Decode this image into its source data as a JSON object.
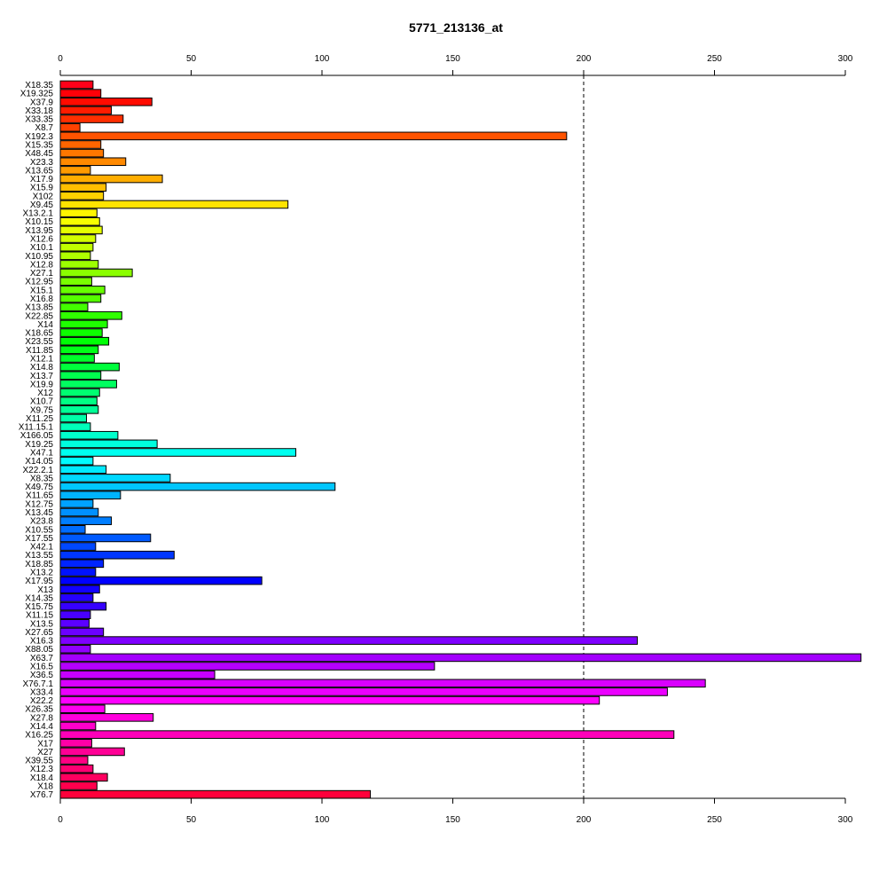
{
  "chart_data": {
    "type": "bar",
    "orientation": "horizontal",
    "title": "5771_213136_at",
    "xlabel": "",
    "ylabel": "",
    "xlim": [
      0,
      300
    ],
    "x_ticks": [
      "0",
      "50",
      "100",
      "150",
      "200",
      "250",
      "300"
    ],
    "x_tick_values": [
      0,
      50,
      100,
      150,
      200,
      250,
      300
    ],
    "reference_line": 200,
    "grid": false,
    "legend": "none",
    "bar_colors": "rainbow",
    "categories": [
      "X18.35",
      "X19.325",
      "X37.9",
      "X33.18",
      "X33.35",
      "X8.7",
      "X192.3",
      "X15.35",
      "X48.45",
      "X23.3",
      "X13.65",
      "X17.9",
      "X15.9",
      "X102",
      "X9.45",
      "X13.2.1",
      "X10.15",
      "X13.95",
      "X12.6",
      "X10.1",
      "X10.95",
      "X12.8",
      "X27.1",
      "X12.95",
      "X15.1",
      "X16.8",
      "X13.85",
      "X22.85",
      "X14",
      "X18.65",
      "X23.55",
      "X11.85",
      "X12.1",
      "X14.8",
      "X13.7",
      "X19.9",
      "X12",
      "X10.7",
      "X9.75",
      "X11.25",
      "X11.15.1",
      "X166.05",
      "X19.25",
      "X47.1",
      "X14.05",
      "X22.2.1",
      "X8.35",
      "X49.75",
      "X11.65",
      "X12.75",
      "X13.45",
      "X23.8",
      "X10.55",
      "X17.55",
      "X42.1",
      "X13.55",
      "X18.85",
      "X13.2",
      "X17.95",
      "X13",
      "X14.35",
      "X15.75",
      "X11.15",
      "X13.5",
      "X27.65",
      "X16.3",
      "X88.05",
      "X63.7",
      "X16.5",
      "X36.5",
      "X76.7.1",
      "X33.4",
      "X22.2",
      "X26.35",
      "X27.8",
      "X14.4",
      "X16.25",
      "X17",
      "X27",
      "X39.55",
      "X12.3",
      "X18.4",
      "X18",
      "X76.7"
    ],
    "values": [
      12.5,
      15.5,
      35,
      19.5,
      24,
      7.5,
      193.5,
      15.5,
      16.5,
      25,
      11.5,
      39,
      17.5,
      16.5,
      87,
      14,
      15,
      16,
      13.5,
      12.5,
      11.5,
      14.5,
      27.5,
      12,
      17,
      15.5,
      10.5,
      23.5,
      18,
      16,
      18.5,
      14.5,
      13,
      22.5,
      15.5,
      21.5,
      15,
      14,
      14.5,
      10,
      11.5,
      22,
      37,
      90,
      12.5,
      17.5,
      42,
      105,
      23,
      12.5,
      14.5,
      19.5,
      9.5,
      34.5,
      13.5,
      43.5,
      16.5,
      13.5,
      77,
      15,
      12.5,
      17.5,
      11.5,
      11,
      16.5,
      220.5,
      11.5,
      306,
      143,
      59,
      246.5,
      232,
      206,
      17,
      35.5,
      13.5,
      234.5,
      12,
      24.5,
      10.5,
      12.5,
      18,
      14,
      118.5
    ]
  }
}
